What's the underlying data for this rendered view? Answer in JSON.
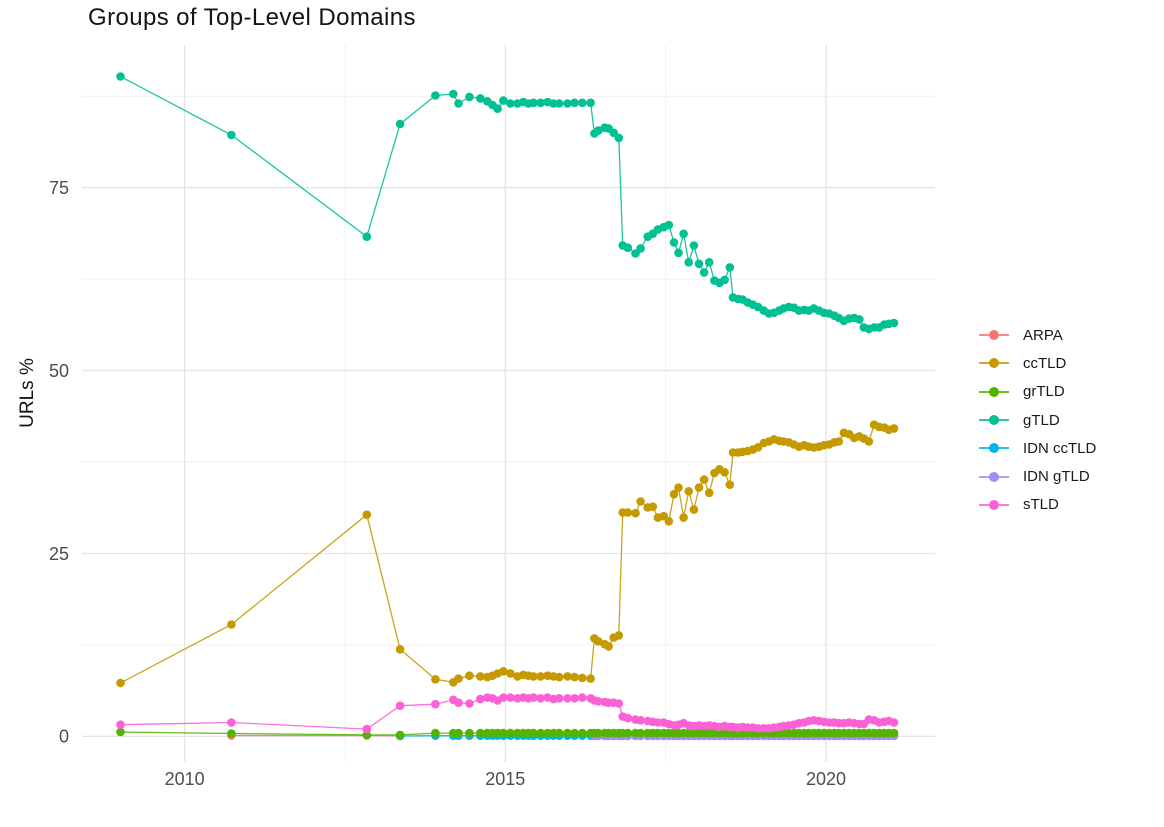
{
  "chart_data": {
    "type": "scatter",
    "title": "Groups of Top-Level Domains",
    "xlabel": "",
    "ylabel": "URLs %",
    "background": "#FFFFFF",
    "grid": "major+minor",
    "grid_major_color": "#E4E4E4",
    "grid_minor_color": "#F0F0F0",
    "tick_label_color": "#4D4D4D",
    "legend_position": "right",
    "xlim": [
      2008.4,
      2021.7
    ],
    "ylim": [
      -3.5,
      94.5
    ],
    "x_ticks": [
      {
        "v": 2010,
        "label": "2010"
      },
      {
        "v": 2015,
        "label": "2015"
      },
      {
        "v": 2020,
        "label": "2020"
      }
    ],
    "x_minor_ticks": [
      2012.5,
      2017.5
    ],
    "y_ticks": [
      {
        "v": 0,
        "label": "0"
      },
      {
        "v": 25,
        "label": "25"
      },
      {
        "v": 50,
        "label": "50"
      },
      {
        "v": 75,
        "label": "75"
      }
    ],
    "y_minor_ticks": [
      12.5,
      37.5,
      62.5,
      87.5
    ],
    "x_dense": [
      2013.91,
      2014.19,
      2014.27,
      2014.44,
      2014.61,
      2014.72,
      2014.8,
      2014.88,
      2014.97,
      2015.08,
      2015.19,
      2015.28,
      2015.36,
      2015.44,
      2015.55,
      2015.66,
      2015.75,
      2015.84,
      2015.97,
      2016.08,
      2016.2,
      2016.33,
      2016.39,
      2016.45,
      2016.55,
      2016.61,
      2016.69,
      2016.77,
      2016.83,
      2016.91,
      2017.03,
      2017.11,
      2017.22,
      2017.3,
      2017.38,
      2017.47,
      2017.55,
      2017.63,
      2017.7,
      2017.78,
      2017.86,
      2017.94,
      2018.02,
      2018.1,
      2018.18,
      2018.26,
      2018.34,
      2018.42,
      2018.5,
      2018.55,
      2018.63,
      2018.7,
      2018.78,
      2018.86,
      2018.94,
      2019.03,
      2019.11,
      2019.19,
      2019.27,
      2019.34,
      2019.42,
      2019.5,
      2019.58,
      2019.66,
      2019.73,
      2019.81,
      2019.89,
      2019.97,
      2020.05,
      2020.13,
      2020.2,
      2020.28,
      2020.36,
      2020.44,
      2020.52,
      2020.59,
      2020.67,
      2020.75,
      2020.83,
      2020.91,
      2020.98,
      2021.06
    ],
    "series": [
      {
        "name": "ARPA",
        "color": "#F8766D",
        "x_head": [
          2010.73,
          2012.84,
          2013.36
        ],
        "y_head": [
          0.12,
          0.12,
          0.08
        ]
      },
      {
        "name": "ccTLD",
        "color": "#C49A00",
        "x_head": [
          2009.0,
          2010.73,
          2012.84,
          2013.36
        ],
        "y_head": [
          7.3,
          15.3,
          30.3,
          11.9
        ],
        "dense_from": 0,
        "y_dense": [
          7.8,
          7.4,
          7.9,
          8.3,
          8.2,
          8.1,
          8.3,
          8.6,
          8.9,
          8.6,
          8.2,
          8.4,
          8.3,
          8.2,
          8.2,
          8.3,
          8.2,
          8.1,
          8.2,
          8.1,
          8.0,
          7.9,
          13.4,
          13.0,
          12.6,
          12.3,
          13.5,
          13.8,
          30.6,
          30.6,
          30.5,
          32.1,
          31.3,
          31.4,
          29.9,
          30.1,
          29.4,
          33.1,
          34.0,
          29.9,
          33.5,
          31.0,
          34.0,
          35.1,
          33.3,
          36.0,
          36.5,
          36.1,
          34.4,
          38.8,
          38.8,
          38.9,
          39.0,
          39.2,
          39.5,
          40.1,
          40.3,
          40.6,
          40.4,
          40.3,
          40.2,
          39.9,
          39.6,
          39.8,
          39.6,
          39.5,
          39.6,
          39.8,
          39.9,
          40.2,
          40.3,
          41.5,
          41.3,
          40.8,
          41.0,
          40.7,
          40.3,
          42.6,
          42.3,
          42.2,
          41.9,
          42.1
        ]
      },
      {
        "name": "grTLD",
        "color": "#53B400",
        "x_head": [
          2009.0,
          2010.73,
          2012.84,
          2013.36
        ],
        "y_head": [
          0.6,
          0.4,
          0.2,
          0.2
        ],
        "dense_from": 0,
        "y_dense_const": 0.45
      },
      {
        "name": "gTLD",
        "color": "#00C094",
        "x_head": [
          2009.0,
          2010.73,
          2012.84,
          2013.36
        ],
        "y_head": [
          90.2,
          82.2,
          68.3,
          83.7
        ],
        "dense_from": 0,
        "y_dense": [
          87.6,
          87.8,
          86.5,
          87.4,
          87.2,
          86.8,
          86.3,
          85.8,
          86.9,
          86.5,
          86.5,
          86.7,
          86.5,
          86.6,
          86.6,
          86.7,
          86.5,
          86.5,
          86.5,
          86.6,
          86.6,
          86.6,
          82.4,
          82.8,
          83.2,
          83.1,
          82.5,
          81.8,
          67.1,
          66.8,
          66.0,
          66.7,
          68.3,
          68.7,
          69.3,
          69.6,
          69.9,
          67.5,
          66.1,
          68.7,
          64.8,
          67.1,
          64.6,
          63.4,
          64.8,
          62.3,
          62.0,
          62.4,
          64.1,
          60.0,
          59.8,
          59.7,
          59.3,
          59.0,
          58.7,
          58.2,
          57.8,
          57.9,
          58.2,
          58.5,
          58.7,
          58.6,
          58.2,
          58.3,
          58.2,
          58.5,
          58.2,
          57.9,
          57.8,
          57.5,
          57.2,
          56.8,
          57.1,
          57.2,
          57.0,
          55.9,
          55.7,
          55.9,
          55.9,
          56.3,
          56.4,
          56.5
        ]
      },
      {
        "name": "IDN ccTLD",
        "color": "#00B6EB",
        "x_head": [
          2013.36
        ],
        "y_head": [
          0.05
        ],
        "dense_from": 0,
        "y_dense_const": 0.1
      },
      {
        "name": "IDN gTLD",
        "color": "#A58AFF",
        "x_head": [],
        "y_head": [],
        "dense_from": 22,
        "y_dense_const": 0.05
      },
      {
        "name": "sTLD",
        "color": "#FB61D7",
        "x_head": [
          2009.0,
          2010.73,
          2012.84,
          2013.36
        ],
        "y_head": [
          1.6,
          1.9,
          1.0,
          4.2
        ],
        "dense_from": 0,
        "y_dense": [
          4.4,
          5.0,
          4.6,
          4.5,
          5.1,
          5.3,
          5.2,
          4.9,
          5.3,
          5.3,
          5.2,
          5.3,
          5.2,
          5.3,
          5.2,
          5.3,
          5.1,
          5.2,
          5.2,
          5.2,
          5.3,
          5.2,
          4.9,
          4.8,
          4.7,
          4.6,
          4.6,
          4.5,
          2.7,
          2.5,
          2.3,
          2.2,
          2.1,
          2.0,
          1.9,
          1.9,
          1.7,
          1.5,
          1.6,
          1.8,
          1.5,
          1.4,
          1.5,
          1.4,
          1.5,
          1.4,
          1.3,
          1.4,
          1.3,
          1.3,
          1.2,
          1.3,
          1.2,
          1.2,
          1.1,
          1.1,
          1.1,
          1.2,
          1.3,
          1.4,
          1.5,
          1.6,
          1.8,
          1.9,
          2.1,
          2.2,
          2.1,
          2.0,
          1.9,
          1.9,
          1.8,
          1.8,
          1.9,
          1.8,
          1.7,
          1.7,
          2.3,
          2.2,
          1.9,
          2.0,
          2.1,
          1.9
        ]
      }
    ]
  }
}
